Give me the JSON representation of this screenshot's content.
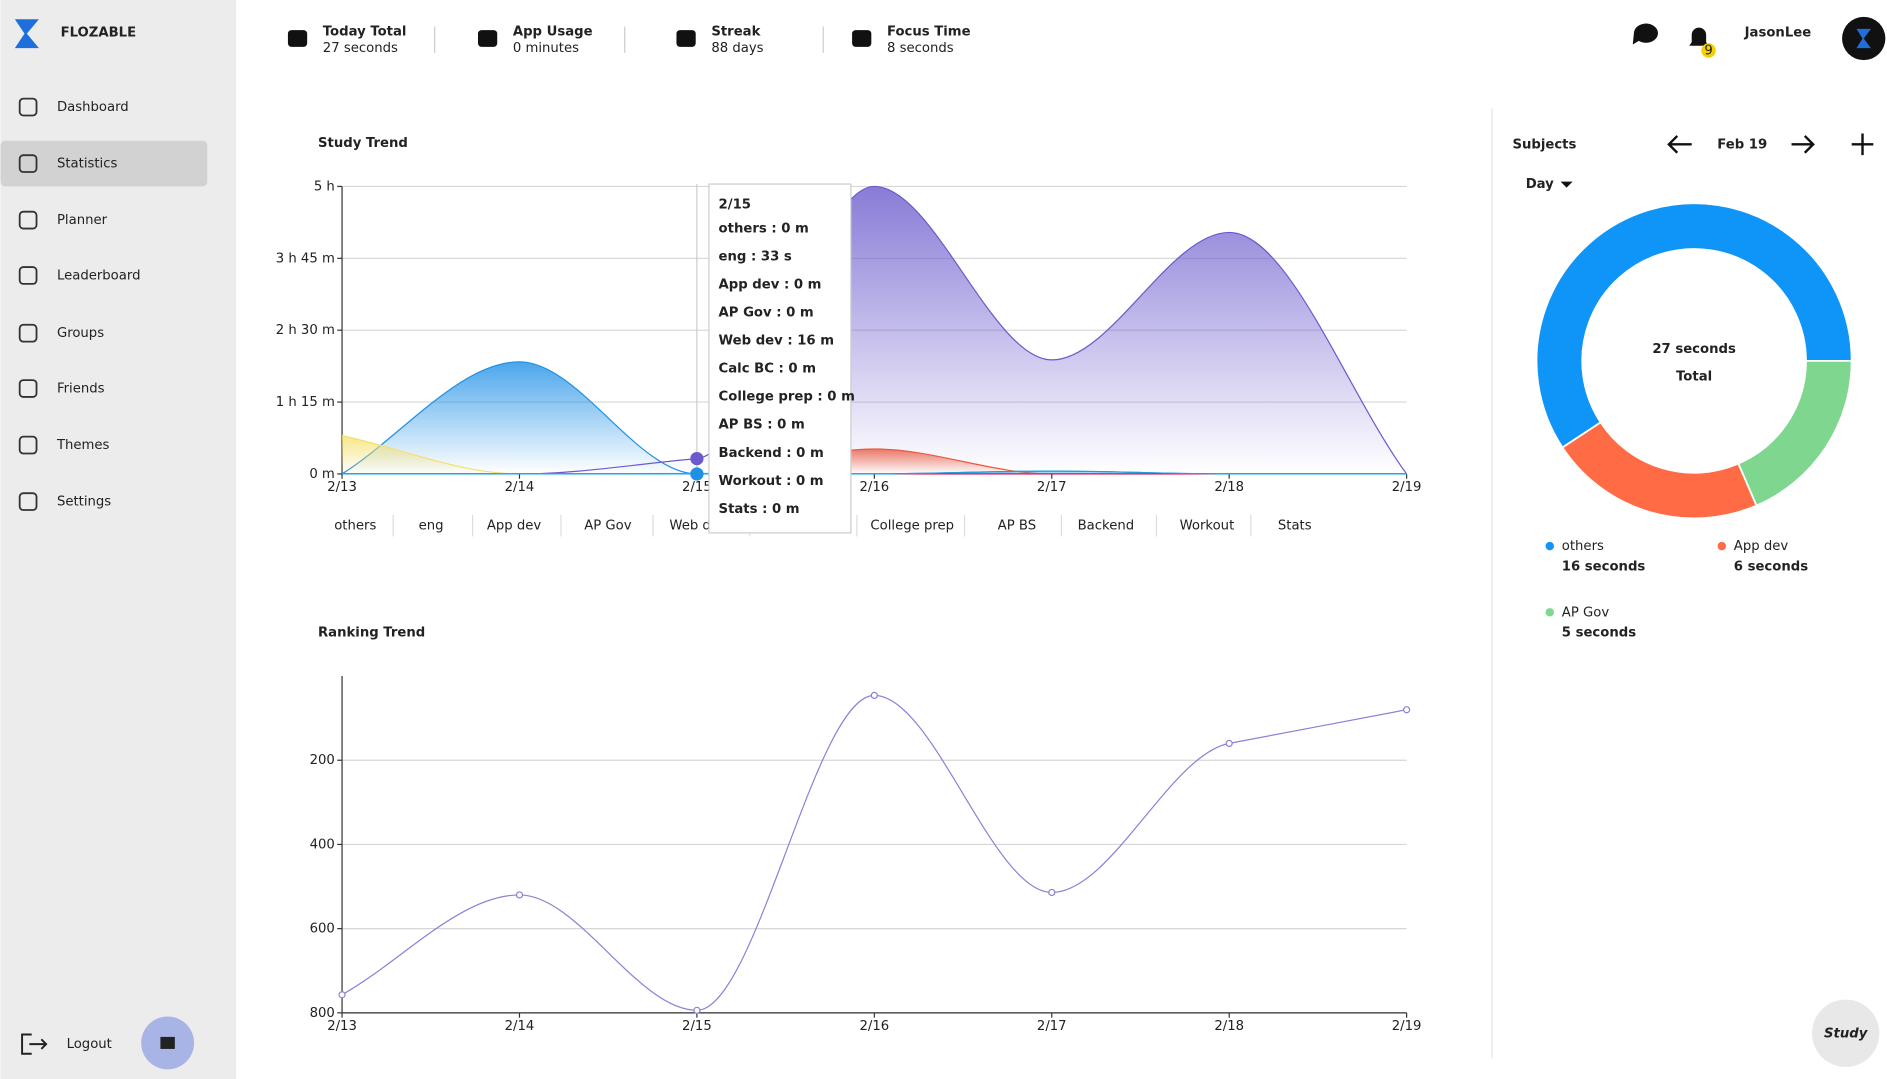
{
  "sidebar": {
    "brand": "FLOZABLE",
    "nav": [
      "Dashboard",
      "Statistics",
      "Planner",
      "Leaderboard",
      "Groups",
      "Friends",
      "Themes",
      "Settings"
    ],
    "active": 1,
    "logout": "Logout"
  },
  "topbar": {
    "stats": [
      {
        "label": "Today Total",
        "value": "27 seconds"
      },
      {
        "label": "App Usage",
        "value": "0 minutes"
      },
      {
        "label": "Streak",
        "value": "88 days"
      },
      {
        "label": "Focus Time",
        "value": "8 seconds"
      }
    ],
    "notifications": "9",
    "user": "JasonLee"
  },
  "study_button": "Study",
  "chart_data": [
    {
      "type": "area",
      "title": "Study Trend",
      "categories": [
        "2/13",
        "2/14",
        "2/15",
        "2/16",
        "2/17",
        "2/18",
        "2/19"
      ],
      "ylim": [
        0,
        300
      ],
      "yticks": [
        {
          "value": 0,
          "label": "0 m"
        },
        {
          "value": 75,
          "label": "1 h 15 m"
        },
        {
          "value": 150,
          "label": "2 h 30 m"
        },
        {
          "value": 225,
          "label": "3 h 45 m"
        },
        {
          "value": 300,
          "label": "5 h"
        }
      ],
      "grid": true,
      "series": [
        {
          "name": "others",
          "color": "#1e90e6",
          "values": [
            0,
            117,
            0,
            0,
            3,
            0,
            0
          ]
        },
        {
          "name": "eng",
          "color": "#3ab4f2",
          "values": [
            0,
            0,
            0.55,
            0,
            0,
            0,
            0
          ]
        },
        {
          "name": "App dev",
          "color": "#f05a3a",
          "values": [
            0,
            0,
            0,
            26,
            0,
            0,
            0
          ]
        },
        {
          "name": "AP Gov",
          "color": "#6cc77f",
          "values": [
            0,
            0,
            0,
            0,
            0,
            0,
            0
          ]
        },
        {
          "name": "Web dev",
          "color": "#6a5acd",
          "values": [
            0,
            0,
            16,
            300,
            119,
            252,
            0
          ]
        },
        {
          "name": "Calc BC",
          "color": "#f5e06a",
          "values": [
            40,
            0,
            0,
            0,
            0,
            0,
            0
          ]
        },
        {
          "name": "College prep",
          "color": "#a9a0d6",
          "values": [
            0,
            0,
            0,
            0,
            0,
            0,
            0
          ]
        },
        {
          "name": "AP BS",
          "color": "#f5b8c8",
          "values": [
            0,
            0,
            0,
            0,
            0,
            0,
            0
          ]
        },
        {
          "name": "Backend",
          "color": "#66c2a5",
          "values": [
            0,
            0,
            0,
            0,
            0,
            0,
            0
          ]
        },
        {
          "name": "Workout",
          "color": "#d6004f",
          "values": [
            0,
            0,
            0,
            0,
            0,
            0,
            0
          ]
        },
        {
          "name": "Stats",
          "color": "#1ca0e0",
          "values": [
            0,
            0,
            0,
            0,
            3,
            0,
            0
          ]
        }
      ],
      "tooltip": {
        "title": "2/15",
        "lines": [
          "others : 0 m",
          "eng : 33 s",
          "App dev : 0 m",
          "AP Gov : 0 m",
          "Web dev : 16 m",
          "Calc BC : 0 m",
          "College prep : 0 m",
          "AP BS : 0 m",
          "Backend : 0 m",
          "Workout : 0 m",
          "Stats : 0 m"
        ]
      }
    },
    {
      "type": "line",
      "title": "Ranking Trend",
      "categories": [
        "2/13",
        "2/14",
        "2/15",
        "2/16",
        "2/17",
        "2/18",
        "2/19"
      ],
      "ylim": [
        0,
        800
      ],
      "y_inverted": true,
      "yticks": [
        200,
        400,
        600,
        800
      ],
      "grid": true,
      "series": [
        {
          "name": "Ranking",
          "color": "#8e7fd6",
          "values": [
            757,
            520,
            794,
            46,
            514,
            160,
            80
          ]
        }
      ]
    },
    {
      "type": "pie",
      "donut": true,
      "title": "Subjects",
      "date": "Feb 19",
      "period": "Day",
      "center_label": "27 seconds",
      "center_sublabel": "Total",
      "categories": [
        "others",
        "App dev",
        "AP Gov"
      ],
      "values": [
        16,
        6,
        5
      ],
      "value_labels": [
        "16 seconds",
        "6 seconds",
        "5 seconds"
      ],
      "colors": [
        "#0f94f7",
        "#ff6b45",
        "#7fd68f"
      ]
    }
  ]
}
